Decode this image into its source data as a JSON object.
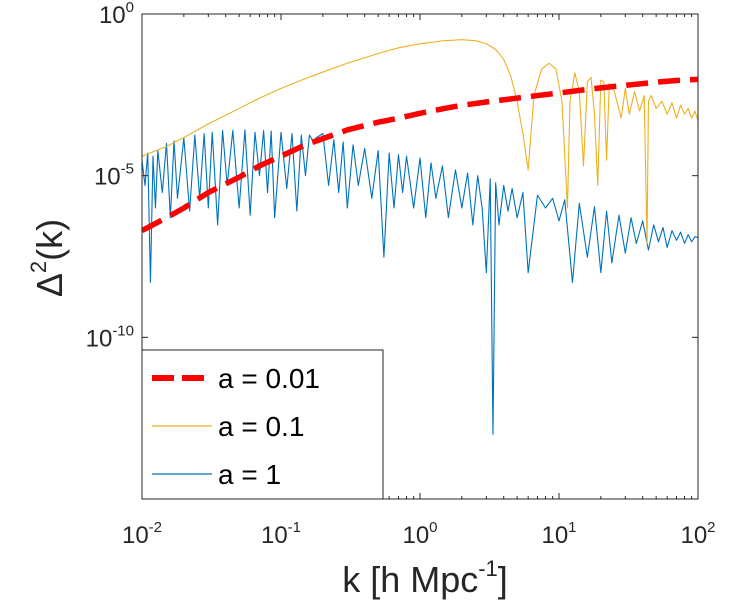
{
  "chart_data": {
    "type": "line",
    "xscale": "log",
    "yscale": "log",
    "xlim": [
      0.01,
      100
    ],
    "ylim": [
      1e-15,
      1
    ],
    "xlabel": {
      "main": "k    [h Mpc",
      "exp": "-1",
      "tail": "]"
    },
    "ylabel": {
      "main": "Δ",
      "exp": "2",
      "tail": "(k)"
    },
    "x_ticks": [
      {
        "value": 0.01,
        "base": "10",
        "exp": "-2"
      },
      {
        "value": 0.1,
        "base": "10",
        "exp": "-1"
      },
      {
        "value": 1,
        "base": "10",
        "exp": "0"
      },
      {
        "value": 10,
        "base": "10",
        "exp": "1"
      },
      {
        "value": 100,
        "base": "10",
        "exp": "2"
      }
    ],
    "y_ticks": [
      {
        "value": 1,
        "base": "10",
        "exp": "0"
      },
      {
        "value": 1e-05,
        "base": "10",
        "exp": "-5"
      },
      {
        "value": 1e-10,
        "base": "10",
        "exp": "-10"
      }
    ],
    "legend": {
      "position": "bottom-left"
    },
    "series": [
      {
        "name": "a = 0.01",
        "color": "#ff0000",
        "style": "dashed",
        "x": [
          0.01,
          0.015,
          0.02,
          0.03,
          0.05,
          0.07,
          0.1,
          0.15,
          0.2,
          0.3,
          0.5,
          0.7,
          1,
          1.5,
          2,
          3,
          5,
          7,
          10,
          15,
          20,
          30,
          50,
          70,
          100
        ],
        "y": [
          2e-07,
          5e-07,
          1e-06,
          3e-06,
          9e-06,
          2e-05,
          4e-05,
          9e-05,
          0.00014,
          0.00026,
          0.00045,
          0.0006,
          0.00085,
          0.0012,
          0.0015,
          0.0019,
          0.0025,
          0.003,
          0.0036,
          0.0045,
          0.0052,
          0.0062,
          0.0078,
          0.0088,
          0.0095
        ]
      },
      {
        "name": "a = 0.1",
        "color": "#edb120",
        "style": "solid",
        "x": [
          0.01,
          0.015,
          0.02,
          0.03,
          0.05,
          0.07,
          0.1,
          0.15,
          0.2,
          0.3,
          0.5,
          0.7,
          1,
          1.5,
          2,
          2.5,
          3,
          3.5,
          4,
          4.5,
          5,
          5.5,
          6,
          6.6,
          7.5,
          8.5,
          9.5,
          10.5,
          11.5,
          12,
          13,
          14,
          15,
          16,
          17,
          18,
          19,
          20,
          21,
          22,
          23,
          25,
          28,
          30,
          32,
          35,
          38,
          41,
          43,
          44,
          46,
          50,
          55,
          60,
          65,
          70,
          75,
          80,
          85,
          90,
          95,
          100
        ],
        "y": [
          4e-05,
          8e-05,
          0.00015,
          0.0004,
          0.0012,
          0.0025,
          0.005,
          0.01,
          0.016,
          0.03,
          0.06,
          0.09,
          0.12,
          0.15,
          0.16,
          0.15,
          0.12,
          0.08,
          0.04,
          0.012,
          0.002,
          0.0002,
          1.5e-05,
          0.003,
          0.02,
          0.03,
          0.02,
          0.002,
          1e-06,
          0.002,
          0.015,
          0.004,
          2e-05,
          0.008,
          0.011,
          0.0008,
          5e-06,
          0.009,
          0.008,
          3e-05,
          0.007,
          0.004,
          0.0006,
          0.005,
          0.0008,
          0.004,
          0.001,
          0.003,
          8e-08,
          0.002,
          0.003,
          0.0012,
          0.002,
          0.0008,
          0.0018,
          0.0006,
          0.0015,
          0.0008,
          0.0012,
          0.0006,
          0.001,
          0.0005
        ]
      },
      {
        "name": "a = 1",
        "color": "#0072bd",
        "style": "solid",
        "x": [
          0.01,
          0.0105,
          0.011,
          0.0115,
          0.012,
          0.0125,
          0.013,
          0.014,
          0.015,
          0.016,
          0.017,
          0.018,
          0.02,
          0.022,
          0.024,
          0.026,
          0.028,
          0.03,
          0.032,
          0.035,
          0.038,
          0.041,
          0.045,
          0.05,
          0.055,
          0.06,
          0.065,
          0.07,
          0.075,
          0.08,
          0.085,
          0.09,
          0.1,
          0.11,
          0.12,
          0.13,
          0.14,
          0.15,
          0.16,
          0.17,
          0.18,
          0.2,
          0.22,
          0.24,
          0.26,
          0.28,
          0.3,
          0.33,
          0.36,
          0.4,
          0.45,
          0.5,
          0.55,
          0.6,
          0.65,
          0.7,
          0.75,
          0.8,
          0.9,
          1,
          1.1,
          1.2,
          1.3,
          1.45,
          1.6,
          1.8,
          2,
          2.2,
          2.4,
          2.6,
          2.8,
          3,
          3.2,
          3.35,
          3.5,
          3.7,
          4,
          4.3,
          4.6,
          5,
          5.5,
          6,
          7,
          8,
          9,
          10,
          11,
          12.5,
          14,
          16,
          18,
          20,
          22,
          24,
          27,
          30,
          33,
          36,
          40,
          44,
          48,
          52,
          56,
          60,
          65,
          70,
          75,
          80,
          85,
          90,
          95,
          100
        ],
        "y": [
          3e-05,
          5e-06,
          5e-05,
          5e-09,
          4e-05,
          1e-06,
          6e-05,
          3e-06,
          0.0001,
          5e-07,
          0.00012,
          2e-06,
          0.00015,
          8e-07,
          0.00018,
          2e-06,
          0.0002,
          1e-06,
          0.00022,
          3e-07,
          0.00025,
          5e-06,
          0.00025,
          1e-06,
          0.00026,
          6e-07,
          0.00022,
          1e-05,
          0.00025,
          3e-06,
          0.00024,
          5e-07,
          0.00022,
          4e-06,
          0.0002,
          8e-07,
          0.00018,
          1e-05,
          0.00018,
          0.00012,
          0.00015,
          0.0002,
          5e-06,
          0.00013,
          3e-06,
          0.00011,
          1e-06,
          9e-05,
          5e-06,
          7e-05,
          2e-06,
          6e-05,
          3e-08,
          5e-05,
          1e-06,
          4.5e-05,
          3e-06,
          4e-05,
          1e-06,
          3.5e-05,
          5e-07,
          2.5e-05,
          2e-06,
          2e-05,
          5e-07,
          1.5e-05,
          1e-06,
          1.2e-05,
          3e-07,
          1e-05,
          1e-06,
          1e-08,
          8e-06,
          1e-13,
          6e-06,
          3e-07,
          5e-06,
          8e-07,
          4e-06,
          5e-07,
          3e-06,
          1e-08,
          2.5e-06,
          1e-06,
          2e-06,
          4e-07,
          1.8e-06,
          5e-09,
          1.4e-06,
          3e-08,
          1.1e-06,
          1e-08,
          8e-07,
          2e-08,
          6e-07,
          4e-08,
          5e-07,
          8e-08,
          4e-07,
          5e-08,
          3e-07,
          9e-08,
          2.5e-07,
          6e-08,
          2e-07,
          1e-07,
          1.8e-07,
          8e-08,
          1.5e-07,
          9e-08,
          1.3e-07,
          1.2e-07
        ]
      }
    ]
  }
}
